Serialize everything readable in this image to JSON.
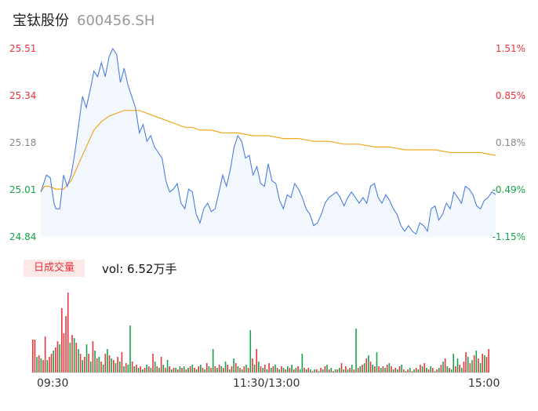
{
  "header": {
    "name": "宝钛股份",
    "code": "600456.SH"
  },
  "colors": {
    "up": "#e8343a",
    "down": "#16a34a",
    "flat": "#888888",
    "price_line": "#4a7fe0",
    "avg_line": "#f0a820"
  },
  "volume": {
    "tag": "日成交量",
    "text": "vol: 6.52万手"
  },
  "chart_data": {
    "type": "line",
    "x_ticks": [
      "09:30",
      "11:30/13:00",
      "15:00"
    ],
    "y_left_ticks": [
      "25.51",
      "25.34",
      "25.18",
      "25.01",
      "24.84"
    ],
    "y_right_ticks": [
      "1.51%",
      "0.85%",
      "0.18%",
      "-0.49%",
      "-1.15%"
    ],
    "ylim": [
      24.84,
      25.51
    ],
    "minutes": 241,
    "series": [
      {
        "role": "price",
        "points": [
          [
            0,
            25.0
          ],
          [
            3,
            25.06
          ],
          [
            5,
            25.05
          ],
          [
            7,
            24.96
          ],
          [
            8,
            24.94
          ],
          [
            10,
            24.94
          ],
          [
            12,
            25.06
          ],
          [
            14,
            25.02
          ],
          [
            16,
            25.06
          ],
          [
            18,
            25.14
          ],
          [
            20,
            25.24
          ],
          [
            22,
            25.34
          ],
          [
            24,
            25.3
          ],
          [
            26,
            25.36
          ],
          [
            28,
            25.43
          ],
          [
            30,
            25.41
          ],
          [
            32,
            25.46
          ],
          [
            34,
            25.41
          ],
          [
            36,
            25.48
          ],
          [
            38,
            25.51
          ],
          [
            40,
            25.49
          ],
          [
            42,
            25.39
          ],
          [
            44,
            25.44
          ],
          [
            46,
            25.38
          ],
          [
            48,
            25.34
          ],
          [
            50,
            25.3
          ],
          [
            52,
            25.21
          ],
          [
            54,
            25.24
          ],
          [
            56,
            25.18
          ],
          [
            58,
            25.2
          ],
          [
            60,
            25.16
          ],
          [
            62,
            25.14
          ],
          [
            64,
            25.12
          ],
          [
            66,
            25.04
          ],
          [
            68,
            25.0
          ],
          [
            70,
            25.01
          ],
          [
            72,
            25.03
          ],
          [
            74,
            24.96
          ],
          [
            76,
            24.94
          ],
          [
            78,
            25.01
          ],
          [
            80,
            25.0
          ],
          [
            82,
            24.92
          ],
          [
            84,
            24.89
          ],
          [
            86,
            24.94
          ],
          [
            88,
            24.96
          ],
          [
            90,
            24.93
          ],
          [
            92,
            24.94
          ],
          [
            94,
            25.0
          ],
          [
            96,
            25.06
          ],
          [
            98,
            25.02
          ],
          [
            100,
            25.08
          ],
          [
            102,
            25.16
          ],
          [
            104,
            25.2
          ],
          [
            106,
            25.18
          ],
          [
            108,
            25.12
          ],
          [
            110,
            25.13
          ],
          [
            112,
            25.06
          ],
          [
            114,
            25.09
          ],
          [
            116,
            25.03
          ],
          [
            118,
            25.02
          ],
          [
            120,
            25.1
          ],
          [
            122,
            25.04
          ],
          [
            124,
            25.03
          ],
          [
            126,
            24.97
          ],
          [
            128,
            24.94
          ],
          [
            130,
            24.99
          ],
          [
            132,
            24.98
          ],
          [
            134,
            25.03
          ],
          [
            136,
            25.01
          ],
          [
            138,
            24.98
          ],
          [
            140,
            24.94
          ],
          [
            142,
            24.92
          ],
          [
            144,
            24.88
          ],
          [
            146,
            24.89
          ],
          [
            148,
            24.92
          ],
          [
            150,
            24.96
          ],
          [
            152,
            24.98
          ],
          [
            154,
            24.99
          ],
          [
            156,
            25.0
          ],
          [
            158,
            24.98
          ],
          [
            160,
            24.95
          ],
          [
            162,
            24.98
          ],
          [
            164,
            25.0
          ],
          [
            166,
            24.98
          ],
          [
            168,
            24.96
          ],
          [
            170,
            24.98
          ],
          [
            172,
            24.96
          ],
          [
            174,
            25.02
          ],
          [
            176,
            25.03
          ],
          [
            178,
            24.98
          ],
          [
            180,
            24.96
          ],
          [
            182,
            24.99
          ],
          [
            184,
            24.97
          ],
          [
            186,
            24.94
          ],
          [
            188,
            24.92
          ],
          [
            190,
            24.88
          ],
          [
            192,
            24.86
          ],
          [
            194,
            24.88
          ],
          [
            196,
            24.86
          ],
          [
            198,
            24.85
          ],
          [
            200,
            24.89
          ],
          [
            202,
            24.88
          ],
          [
            204,
            24.86
          ],
          [
            206,
            24.94
          ],
          [
            208,
            24.95
          ],
          [
            210,
            24.9
          ],
          [
            212,
            24.92
          ],
          [
            214,
            24.96
          ],
          [
            216,
            24.94
          ],
          [
            218,
            25.0
          ],
          [
            220,
            24.98
          ],
          [
            222,
            24.96
          ],
          [
            224,
            25.02
          ],
          [
            226,
            25.01
          ],
          [
            228,
            24.99
          ],
          [
            230,
            24.95
          ],
          [
            232,
            24.94
          ],
          [
            234,
            24.97
          ],
          [
            236,
            24.98
          ],
          [
            238,
            25.0
          ],
          [
            240,
            24.99
          ]
        ]
      },
      {
        "role": "average",
        "points": [
          [
            0,
            25.0
          ],
          [
            2,
            25.02
          ],
          [
            4,
            25.02
          ],
          [
            8,
            25.01
          ],
          [
            12,
            25.01
          ],
          [
            16,
            25.04
          ],
          [
            20,
            25.1
          ],
          [
            24,
            25.16
          ],
          [
            28,
            25.22
          ],
          [
            32,
            25.25
          ],
          [
            36,
            25.27
          ],
          [
            40,
            25.28
          ],
          [
            44,
            25.29
          ],
          [
            48,
            25.29
          ],
          [
            52,
            25.29
          ],
          [
            56,
            25.28
          ],
          [
            60,
            25.27
          ],
          [
            64,
            25.26
          ],
          [
            68,
            25.25
          ],
          [
            72,
            25.24
          ],
          [
            76,
            25.23
          ],
          [
            80,
            25.23
          ],
          [
            84,
            25.22
          ],
          [
            90,
            25.22
          ],
          [
            96,
            25.21
          ],
          [
            104,
            25.21
          ],
          [
            112,
            25.2
          ],
          [
            120,
            25.2
          ],
          [
            128,
            25.19
          ],
          [
            136,
            25.19
          ],
          [
            144,
            25.18
          ],
          [
            152,
            25.18
          ],
          [
            160,
            25.17
          ],
          [
            168,
            25.17
          ],
          [
            176,
            25.16
          ],
          [
            184,
            25.16
          ],
          [
            192,
            25.15
          ],
          [
            200,
            25.15
          ],
          [
            208,
            25.15
          ],
          [
            216,
            25.14
          ],
          [
            224,
            25.14
          ],
          [
            232,
            25.14
          ],
          [
            240,
            25.13
          ]
        ]
      }
    ],
    "volume_bars": [
      [
        42,
        "up"
      ],
      [
        42,
        "up"
      ],
      [
        20,
        "down"
      ],
      [
        22,
        "up"
      ],
      [
        18,
        "down"
      ],
      [
        16,
        "up"
      ],
      [
        46,
        "up"
      ],
      [
        16,
        "down"
      ],
      [
        20,
        "up"
      ],
      [
        24,
        "up"
      ],
      [
        28,
        "down"
      ],
      [
        32,
        "up"
      ],
      [
        40,
        "up"
      ],
      [
        36,
        "down"
      ],
      [
        82,
        "up"
      ],
      [
        50,
        "up"
      ],
      [
        72,
        "up"
      ],
      [
        102,
        "up"
      ],
      [
        38,
        "down"
      ],
      [
        48,
        "up"
      ],
      [
        44,
        "down"
      ],
      [
        38,
        "up"
      ],
      [
        30,
        "down"
      ],
      [
        24,
        "up"
      ],
      [
        16,
        "down"
      ],
      [
        20,
        "up"
      ],
      [
        36,
        "down"
      ],
      [
        24,
        "up"
      ],
      [
        14,
        "down"
      ],
      [
        40,
        "up"
      ],
      [
        28,
        "down"
      ],
      [
        18,
        "up"
      ],
      [
        20,
        "down"
      ],
      [
        14,
        "up"
      ],
      [
        10,
        "down"
      ],
      [
        24,
        "up"
      ],
      [
        30,
        "down"
      ],
      [
        22,
        "up"
      ],
      [
        18,
        "down"
      ],
      [
        16,
        "up"
      ],
      [
        12,
        "down"
      ],
      [
        20,
        "up"
      ],
      [
        14,
        "down"
      ],
      [
        26,
        "up"
      ],
      [
        8,
        "down"
      ],
      [
        12,
        "up"
      ],
      [
        10,
        "down"
      ],
      [
        60,
        "down"
      ],
      [
        14,
        "up"
      ],
      [
        8,
        "down"
      ],
      [
        10,
        "up"
      ],
      [
        6,
        "down"
      ],
      [
        8,
        "up"
      ],
      [
        4,
        "down"
      ],
      [
        6,
        "up"
      ],
      [
        10,
        "down"
      ],
      [
        8,
        "up"
      ],
      [
        6,
        "down"
      ],
      [
        24,
        "up"
      ],
      [
        14,
        "down"
      ],
      [
        8,
        "up"
      ],
      [
        6,
        "down"
      ],
      [
        20,
        "up"
      ],
      [
        10,
        "down"
      ],
      [
        6,
        "up"
      ],
      [
        16,
        "down"
      ],
      [
        8,
        "up"
      ],
      [
        4,
        "down"
      ],
      [
        6,
        "up"
      ],
      [
        6,
        "down"
      ],
      [
        4,
        "up"
      ],
      [
        8,
        "down"
      ],
      [
        6,
        "up"
      ],
      [
        8,
        "down"
      ],
      [
        4,
        "up"
      ],
      [
        6,
        "down"
      ],
      [
        8,
        "up"
      ],
      [
        10,
        "down"
      ],
      [
        6,
        "up"
      ],
      [
        4,
        "down"
      ],
      [
        8,
        "up"
      ],
      [
        10,
        "down"
      ],
      [
        6,
        "up"
      ],
      [
        4,
        "down"
      ],
      [
        12,
        "up"
      ],
      [
        8,
        "down"
      ],
      [
        6,
        "up"
      ],
      [
        30,
        "down"
      ],
      [
        8,
        "up"
      ],
      [
        6,
        "down"
      ],
      [
        10,
        "up"
      ],
      [
        8,
        "down"
      ],
      [
        6,
        "up"
      ],
      [
        14,
        "down"
      ],
      [
        10,
        "up"
      ],
      [
        4,
        "down"
      ],
      [
        8,
        "up"
      ],
      [
        18,
        "down"
      ],
      [
        12,
        "up"
      ],
      [
        8,
        "down"
      ],
      [
        6,
        "up"
      ],
      [
        4,
        "down"
      ],
      [
        8,
        "up"
      ],
      [
        10,
        "down"
      ],
      [
        6,
        "up"
      ],
      [
        54,
        "down"
      ],
      [
        18,
        "up"
      ],
      [
        10,
        "down"
      ],
      [
        30,
        "up"
      ],
      [
        14,
        "down"
      ],
      [
        8,
        "up"
      ],
      [
        6,
        "down"
      ],
      [
        10,
        "up"
      ],
      [
        4,
        "down"
      ],
      [
        12,
        "up"
      ],
      [
        6,
        "down"
      ],
      [
        8,
        "up"
      ],
      [
        10,
        "down"
      ],
      [
        6,
        "up"
      ],
      [
        4,
        "down"
      ],
      [
        8,
        "up"
      ],
      [
        6,
        "down"
      ],
      [
        4,
        "up"
      ],
      [
        8,
        "down"
      ],
      [
        6,
        "up"
      ],
      [
        10,
        "down"
      ],
      [
        4,
        "up"
      ],
      [
        6,
        "down"
      ],
      [
        8,
        "up"
      ],
      [
        4,
        "down"
      ],
      [
        24,
        "down"
      ],
      [
        6,
        "up"
      ],
      [
        4,
        "down"
      ],
      [
        6,
        "up"
      ],
      [
        4,
        "down"
      ],
      [
        2,
        "up"
      ],
      [
        4,
        "down"
      ],
      [
        4,
        "up"
      ],
      [
        2,
        "down"
      ],
      [
        6,
        "up"
      ],
      [
        4,
        "down"
      ],
      [
        8,
        "up"
      ],
      [
        10,
        "down"
      ],
      [
        4,
        "up"
      ],
      [
        6,
        "down"
      ],
      [
        2,
        "up"
      ],
      [
        4,
        "down"
      ],
      [
        4,
        "up"
      ],
      [
        6,
        "down"
      ],
      [
        12,
        "up"
      ],
      [
        4,
        "down"
      ],
      [
        8,
        "up"
      ],
      [
        4,
        "down"
      ],
      [
        6,
        "up"
      ],
      [
        10,
        "down"
      ],
      [
        4,
        "up"
      ],
      [
        56,
        "down"
      ],
      [
        6,
        "up"
      ],
      [
        8,
        "down"
      ],
      [
        10,
        "up"
      ],
      [
        12,
        "down"
      ],
      [
        18,
        "up"
      ],
      [
        22,
        "down"
      ],
      [
        14,
        "up"
      ],
      [
        10,
        "down"
      ],
      [
        8,
        "up"
      ],
      [
        26,
        "down"
      ],
      [
        8,
        "up"
      ],
      [
        6,
        "down"
      ],
      [
        8,
        "up"
      ],
      [
        6,
        "down"
      ],
      [
        10,
        "up"
      ],
      [
        12,
        "down"
      ],
      [
        8,
        "up"
      ],
      [
        4,
        "down"
      ],
      [
        6,
        "up"
      ],
      [
        4,
        "down"
      ],
      [
        8,
        "up"
      ],
      [
        10,
        "down"
      ],
      [
        4,
        "up"
      ],
      [
        2,
        "down"
      ],
      [
        4,
        "up"
      ],
      [
        6,
        "down"
      ],
      [
        2,
        "up"
      ],
      [
        4,
        "down"
      ],
      [
        6,
        "up"
      ],
      [
        4,
        "down"
      ],
      [
        10,
        "up"
      ],
      [
        8,
        "down"
      ],
      [
        12,
        "up"
      ],
      [
        6,
        "down"
      ],
      [
        4,
        "up"
      ],
      [
        8,
        "down"
      ],
      [
        6,
        "up"
      ],
      [
        2,
        "down"
      ],
      [
        4,
        "up"
      ],
      [
        6,
        "down"
      ],
      [
        10,
        "up"
      ],
      [
        14,
        "down"
      ],
      [
        18,
        "up"
      ],
      [
        8,
        "down"
      ],
      [
        6,
        "up"
      ],
      [
        4,
        "down"
      ],
      [
        24,
        "down"
      ],
      [
        8,
        "up"
      ],
      [
        18,
        "down"
      ],
      [
        10,
        "up"
      ],
      [
        6,
        "down"
      ],
      [
        14,
        "up"
      ],
      [
        26,
        "up"
      ],
      [
        20,
        "down"
      ],
      [
        12,
        "up"
      ],
      [
        16,
        "down"
      ],
      [
        22,
        "up"
      ],
      [
        28,
        "down"
      ],
      [
        18,
        "up"
      ],
      [
        12,
        "down"
      ],
      [
        24,
        "up"
      ],
      [
        22,
        "down"
      ],
      [
        20,
        "up"
      ],
      [
        30,
        "up"
      ]
    ]
  }
}
